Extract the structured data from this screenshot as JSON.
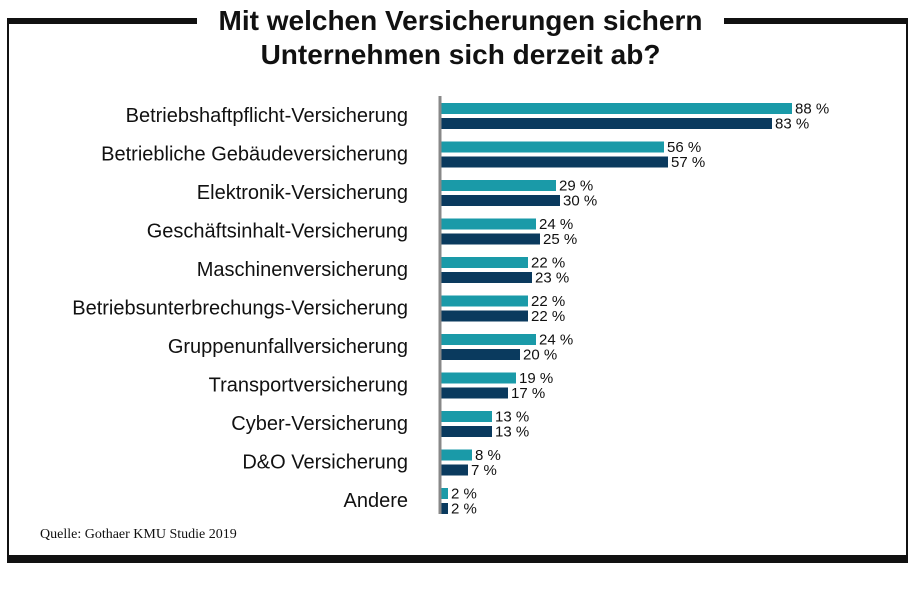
{
  "title_line1": "Mit welchen Versicherungen sichern",
  "title_line2": "Unternehmen sich derzeit ab?",
  "source": "Quelle: Gothaer KMU Studie 2019",
  "colors": {
    "series1": "#1a9aa8",
    "series2": "#0a3a5e",
    "axis": "#888888",
    "frame": "#111111"
  },
  "chart_data": {
    "type": "bar",
    "orientation": "horizontal",
    "categories": [
      "Betriebshaftpflicht-Versicherung",
      "Betriebliche Gebäudeversicherung",
      "Elektronik-Versicherung",
      "Geschäftsinhalt-Versicherung",
      "Maschinenversicherung",
      "Betriebsunterbrechungs-Versicherung",
      "Gruppenunfallversicherung",
      "Transportversicherung",
      "Cyber-Versicherung",
      "D&O Versicherung",
      "Andere"
    ],
    "series": [
      {
        "values": [
          88,
          56,
          29,
          24,
          22,
          22,
          24,
          19,
          13,
          8,
          2
        ],
        "labels": [
          "88 %",
          "56 %",
          "29 %",
          "24 %",
          "22 %",
          "22 %",
          "24  %",
          "19 %",
          "13 %",
          "8 %",
          "2 %"
        ]
      },
      {
        "values": [
          83,
          57,
          30,
          25,
          23,
          22,
          20,
          17,
          13,
          7,
          2
        ],
        "labels": [
          "83 %",
          "57 %",
          "30 %",
          "25 %",
          "23 %",
          "22 %",
          "20 %",
          "17 %",
          "13 %",
          "7 %",
          "2 %"
        ]
      }
    ],
    "xlim": [
      0,
      100
    ],
    "grid": false,
    "legend": "none"
  }
}
